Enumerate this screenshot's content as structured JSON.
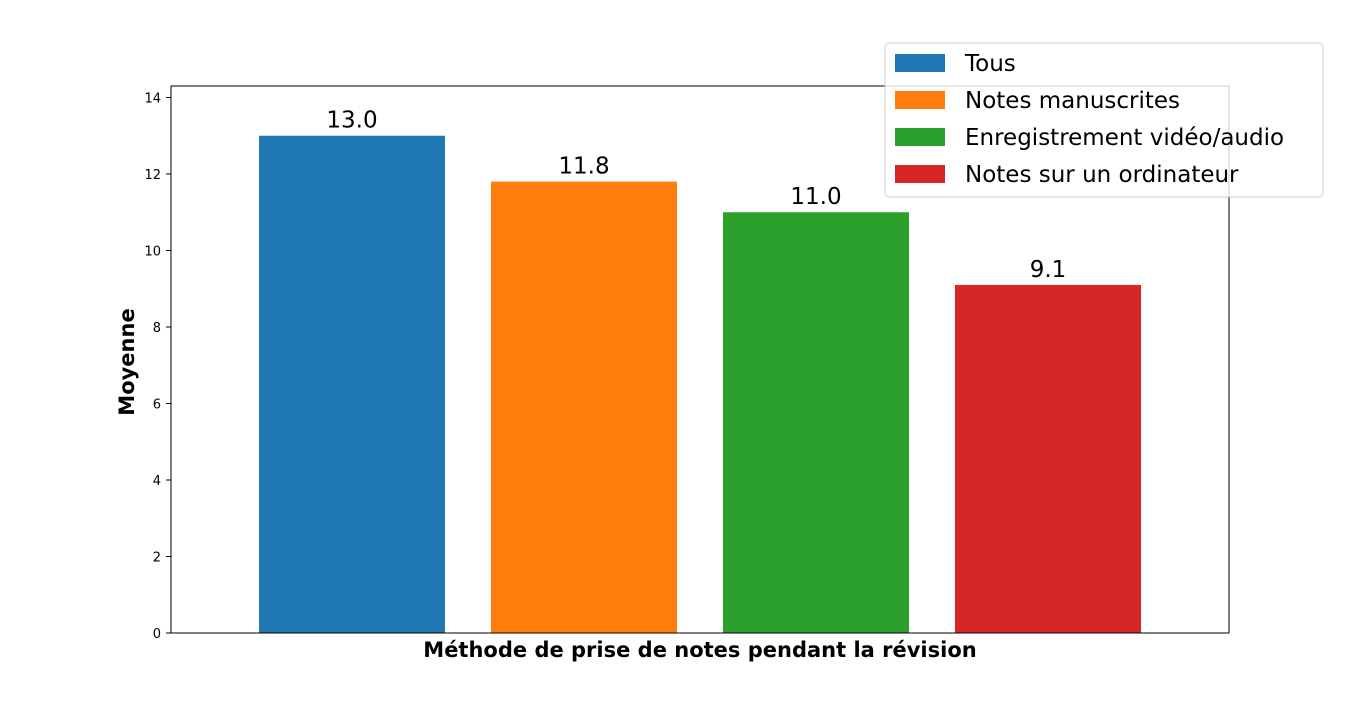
{
  "chart_data": {
    "type": "bar",
    "title": "",
    "xlabel": "Méthode de prise de notes pendant la révision",
    "ylabel": "Moyenne",
    "ylim": [
      0,
      14.3
    ],
    "yticks": [
      0,
      2,
      4,
      6,
      8,
      10,
      12,
      14
    ],
    "grid": false,
    "legend_position": "top-right",
    "series": [
      {
        "name": "Tous",
        "value": 13.0,
        "label": "13.0",
        "color": "#1f77b4"
      },
      {
        "name": "Notes manuscrites",
        "value": 11.8,
        "label": "11.8",
        "color": "#ff7f0e"
      },
      {
        "name": "Enregistrement vidéo/audio",
        "value": 11.0,
        "label": "11.0",
        "color": "#2ca02c"
      },
      {
        "name": "Notes sur un ordinateur",
        "value": 9.1,
        "label": "9.1",
        "color": "#d62728"
      }
    ]
  }
}
